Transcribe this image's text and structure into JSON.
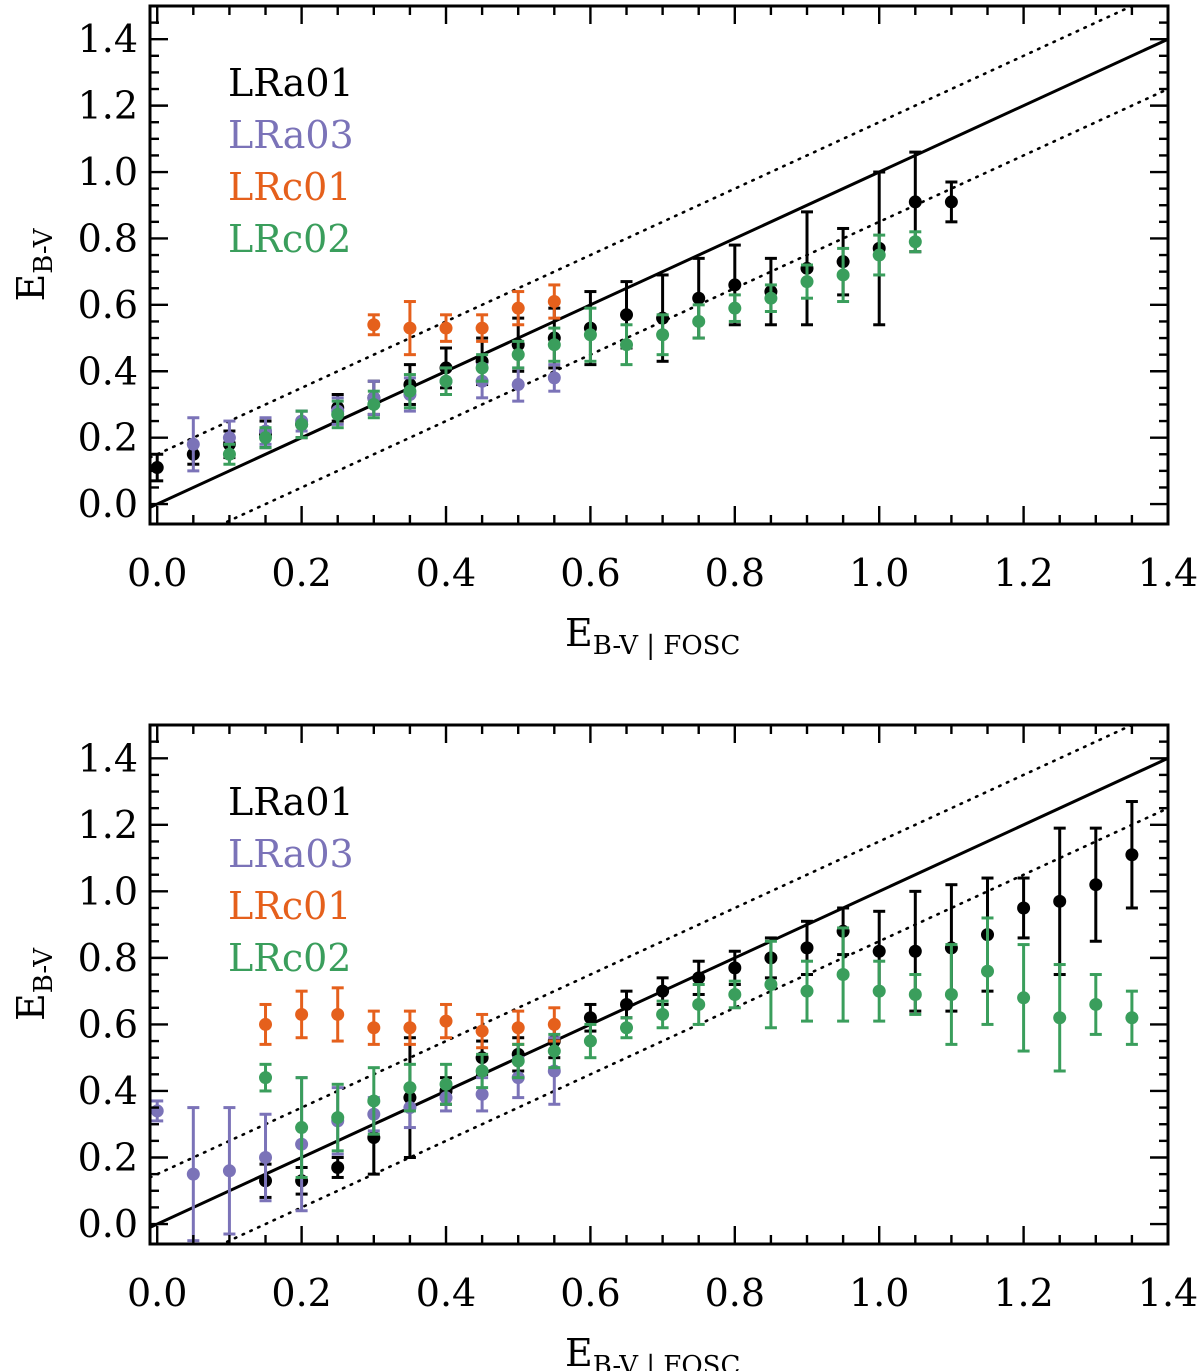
{
  "colors": {
    "LRa01": "#000000",
    "LRa03": "#7b73b8",
    "LRc01": "#e5601c",
    "LRc02": "#3a9e5c"
  },
  "chart_data": [
    {
      "type": "scatter",
      "panel": "top",
      "xlabel_main": "E",
      "xlabel_sub": "B-V | FOSC",
      "ylabel_main": "E",
      "ylabel_sub": "B-V",
      "xlim": [
        -0.01,
        1.4
      ],
      "ylim": [
        -0.06,
        1.5
      ],
      "x_ticks": [
        "0.0",
        "0.2",
        "0.4",
        "0.6",
        "0.8",
        "1.0",
        "1.2",
        "1.4"
      ],
      "y_ticks": [
        "0.0",
        "0.2",
        "0.4",
        "0.6",
        "0.8",
        "1.0",
        "1.2",
        "1.4"
      ],
      "reference_lines": [
        {
          "name": "one-to-one",
          "style": "solid",
          "offset": 0
        },
        {
          "name": "upper-bound",
          "style": "dotted",
          "offset": 0.15
        },
        {
          "name": "lower-bound",
          "style": "dotted",
          "offset": -0.15
        }
      ],
      "legend": [
        "LRa01",
        "LRa03",
        "LRc01",
        "LRc02"
      ],
      "series": [
        {
          "name": "LRa01",
          "points": [
            [
              0.0,
              0.11,
              0.04
            ],
            [
              0.05,
              0.15,
              0.03
            ],
            [
              0.1,
              0.18,
              0.04
            ],
            [
              0.15,
              0.21,
              0.04
            ],
            [
              0.2,
              0.24,
              0.04
            ],
            [
              0.25,
              0.29,
              0.04
            ],
            [
              0.3,
              0.32,
              0.05
            ],
            [
              0.35,
              0.36,
              0.06
            ],
            [
              0.4,
              0.41,
              0.06
            ],
            [
              0.45,
              0.43,
              0.07
            ],
            [
              0.5,
              0.48,
              0.08
            ],
            [
              0.55,
              0.5,
              0.09
            ],
            [
              0.6,
              0.53,
              0.11
            ],
            [
              0.65,
              0.57,
              0.1
            ],
            [
              0.7,
              0.56,
              0.13
            ],
            [
              0.75,
              0.62,
              0.12
            ],
            [
              0.8,
              0.66,
              0.12
            ],
            [
              0.85,
              0.64,
              0.1
            ],
            [
              0.9,
              0.71,
              0.17
            ],
            [
              0.95,
              0.73,
              0.1
            ],
            [
              1.0,
              0.77,
              0.23
            ],
            [
              1.05,
              0.91,
              0.15
            ],
            [
              1.1,
              0.91,
              0.06
            ]
          ]
        },
        {
          "name": "LRa03",
          "points": [
            [
              0.05,
              0.18,
              0.08
            ],
            [
              0.1,
              0.2,
              0.05
            ],
            [
              0.15,
              0.22,
              0.04
            ],
            [
              0.2,
              0.25,
              0.03
            ],
            [
              0.25,
              0.28,
              0.04
            ],
            [
              0.3,
              0.32,
              0.05
            ],
            [
              0.35,
              0.33,
              0.05
            ],
            [
              0.4,
              0.37,
              0.04
            ],
            [
              0.45,
              0.37,
              0.05
            ],
            [
              0.5,
              0.36,
              0.05
            ],
            [
              0.55,
              0.38,
              0.04
            ]
          ]
        },
        {
          "name": "LRc01",
          "points": [
            [
              0.3,
              0.54,
              0.03
            ],
            [
              0.35,
              0.53,
              0.08
            ],
            [
              0.4,
              0.53,
              0.04
            ],
            [
              0.45,
              0.53,
              0.04
            ],
            [
              0.5,
              0.59,
              0.05
            ],
            [
              0.55,
              0.61,
              0.05
            ]
          ]
        },
        {
          "name": "LRc02",
          "points": [
            [
              0.1,
              0.15,
              0.03
            ],
            [
              0.15,
              0.2,
              0.03
            ],
            [
              0.2,
              0.24,
              0.04
            ],
            [
              0.25,
              0.27,
              0.04
            ],
            [
              0.3,
              0.3,
              0.04
            ],
            [
              0.35,
              0.34,
              0.05
            ],
            [
              0.4,
              0.37,
              0.04
            ],
            [
              0.45,
              0.41,
              0.04
            ],
            [
              0.5,
              0.45,
              0.04
            ],
            [
              0.55,
              0.48,
              0.05
            ],
            [
              0.6,
              0.51,
              0.08
            ],
            [
              0.65,
              0.48,
              0.06
            ],
            [
              0.7,
              0.51,
              0.06
            ],
            [
              0.75,
              0.55,
              0.05
            ],
            [
              0.8,
              0.59,
              0.04
            ],
            [
              0.85,
              0.62,
              0.04
            ],
            [
              0.9,
              0.67,
              0.05
            ],
            [
              0.95,
              0.69,
              0.08
            ],
            [
              1.0,
              0.75,
              0.06
            ],
            [
              1.05,
              0.79,
              0.03
            ]
          ]
        }
      ]
    },
    {
      "type": "scatter",
      "panel": "bottom",
      "xlabel_main": "E",
      "xlabel_sub": "B-V | FOSC",
      "ylabel_main": "E",
      "ylabel_sub": "B-V",
      "xlim": [
        -0.01,
        1.4
      ],
      "ylim": [
        -0.06,
        1.5
      ],
      "x_ticks": [
        "0.0",
        "0.2",
        "0.4",
        "0.6",
        "0.8",
        "1.0",
        "1.2",
        "1.4"
      ],
      "y_ticks": [
        "0.0",
        "0.2",
        "0.4",
        "0.6",
        "0.8",
        "1.0",
        "1.2",
        "1.4"
      ],
      "reference_lines": [
        {
          "name": "one-to-one",
          "style": "solid",
          "offset": 0
        },
        {
          "name": "upper-bound",
          "style": "dotted",
          "offset": 0.15
        },
        {
          "name": "lower-bound",
          "style": "dotted",
          "offset": -0.15
        }
      ],
      "legend": [
        "LRa01",
        "LRa03",
        "LRc01",
        "LRc02"
      ],
      "series": [
        {
          "name": "LRa01",
          "points": [
            [
              0.15,
              0.13,
              0.05
            ],
            [
              0.2,
              0.13,
              0.04
            ],
            [
              0.25,
              0.17,
              0.03
            ],
            [
              0.3,
              0.26,
              0.11
            ],
            [
              0.35,
              0.38,
              0.18
            ],
            [
              0.4,
              0.4,
              0.04
            ],
            [
              0.45,
              0.5,
              0.05
            ],
            [
              0.5,
              0.51,
              0.05
            ],
            [
              0.55,
              0.55,
              0.05
            ],
            [
              0.6,
              0.62,
              0.04
            ],
            [
              0.65,
              0.66,
              0.04
            ],
            [
              0.7,
              0.7,
              0.04
            ],
            [
              0.75,
              0.74,
              0.05
            ],
            [
              0.8,
              0.77,
              0.05
            ],
            [
              0.85,
              0.8,
              0.06
            ],
            [
              0.9,
              0.83,
              0.08
            ],
            [
              0.95,
              0.88,
              0.07
            ],
            [
              1.0,
              0.82,
              0.12
            ],
            [
              1.05,
              0.82,
              0.18
            ],
            [
              1.1,
              0.83,
              0.19
            ],
            [
              1.15,
              0.87,
              0.17
            ],
            [
              1.2,
              0.95,
              0.09
            ],
            [
              1.25,
              0.97,
              0.22
            ],
            [
              1.3,
              1.02,
              0.17
            ],
            [
              1.35,
              1.11,
              0.16
            ]
          ]
        },
        {
          "name": "LRa03",
          "points": [
            [
              0.0,
              0.34,
              0.03
            ],
            [
              0.05,
              0.15,
              0.2
            ],
            [
              0.1,
              0.16,
              0.19
            ],
            [
              0.15,
              0.2,
              0.13
            ],
            [
              0.2,
              0.24,
              0.2
            ],
            [
              0.25,
              0.31,
              0.1
            ],
            [
              0.3,
              0.33,
              0.05
            ],
            [
              0.35,
              0.35,
              0.06
            ],
            [
              0.4,
              0.38,
              0.04
            ],
            [
              0.45,
              0.39,
              0.05
            ],
            [
              0.5,
              0.44,
              0.06
            ],
            [
              0.55,
              0.46,
              0.1
            ]
          ]
        },
        {
          "name": "LRc01",
          "points": [
            [
              0.15,
              0.6,
              0.06
            ],
            [
              0.2,
              0.63,
              0.07
            ],
            [
              0.25,
              0.63,
              0.08
            ],
            [
              0.3,
              0.59,
              0.05
            ],
            [
              0.35,
              0.59,
              0.05
            ],
            [
              0.4,
              0.61,
              0.05
            ],
            [
              0.45,
              0.58,
              0.05
            ],
            [
              0.5,
              0.59,
              0.05
            ],
            [
              0.55,
              0.6,
              0.05
            ]
          ]
        },
        {
          "name": "LRc02",
          "points": [
            [
              0.15,
              0.44,
              0.04
            ],
            [
              0.2,
              0.29,
              0.15
            ],
            [
              0.25,
              0.32,
              0.1
            ],
            [
              0.3,
              0.37,
              0.1
            ],
            [
              0.35,
              0.41,
              0.07
            ],
            [
              0.4,
              0.42,
              0.06
            ],
            [
              0.45,
              0.46,
              0.05
            ],
            [
              0.5,
              0.49,
              0.05
            ],
            [
              0.55,
              0.52,
              0.05
            ],
            [
              0.6,
              0.55,
              0.05
            ],
            [
              0.65,
              0.59,
              0.03
            ],
            [
              0.7,
              0.63,
              0.04
            ],
            [
              0.75,
              0.66,
              0.06
            ],
            [
              0.8,
              0.69,
              0.04
            ],
            [
              0.85,
              0.72,
              0.13
            ],
            [
              0.9,
              0.7,
              0.09
            ],
            [
              0.95,
              0.75,
              0.14
            ],
            [
              1.0,
              0.7,
              0.09
            ],
            [
              1.05,
              0.69,
              0.06
            ],
            [
              1.1,
              0.69,
              0.15
            ],
            [
              1.15,
              0.76,
              0.16
            ],
            [
              1.2,
              0.68,
              0.16
            ],
            [
              1.25,
              0.62,
              0.16
            ],
            [
              1.3,
              0.66,
              0.09
            ],
            [
              1.35,
              0.62,
              0.08
            ]
          ]
        }
      ]
    }
  ]
}
